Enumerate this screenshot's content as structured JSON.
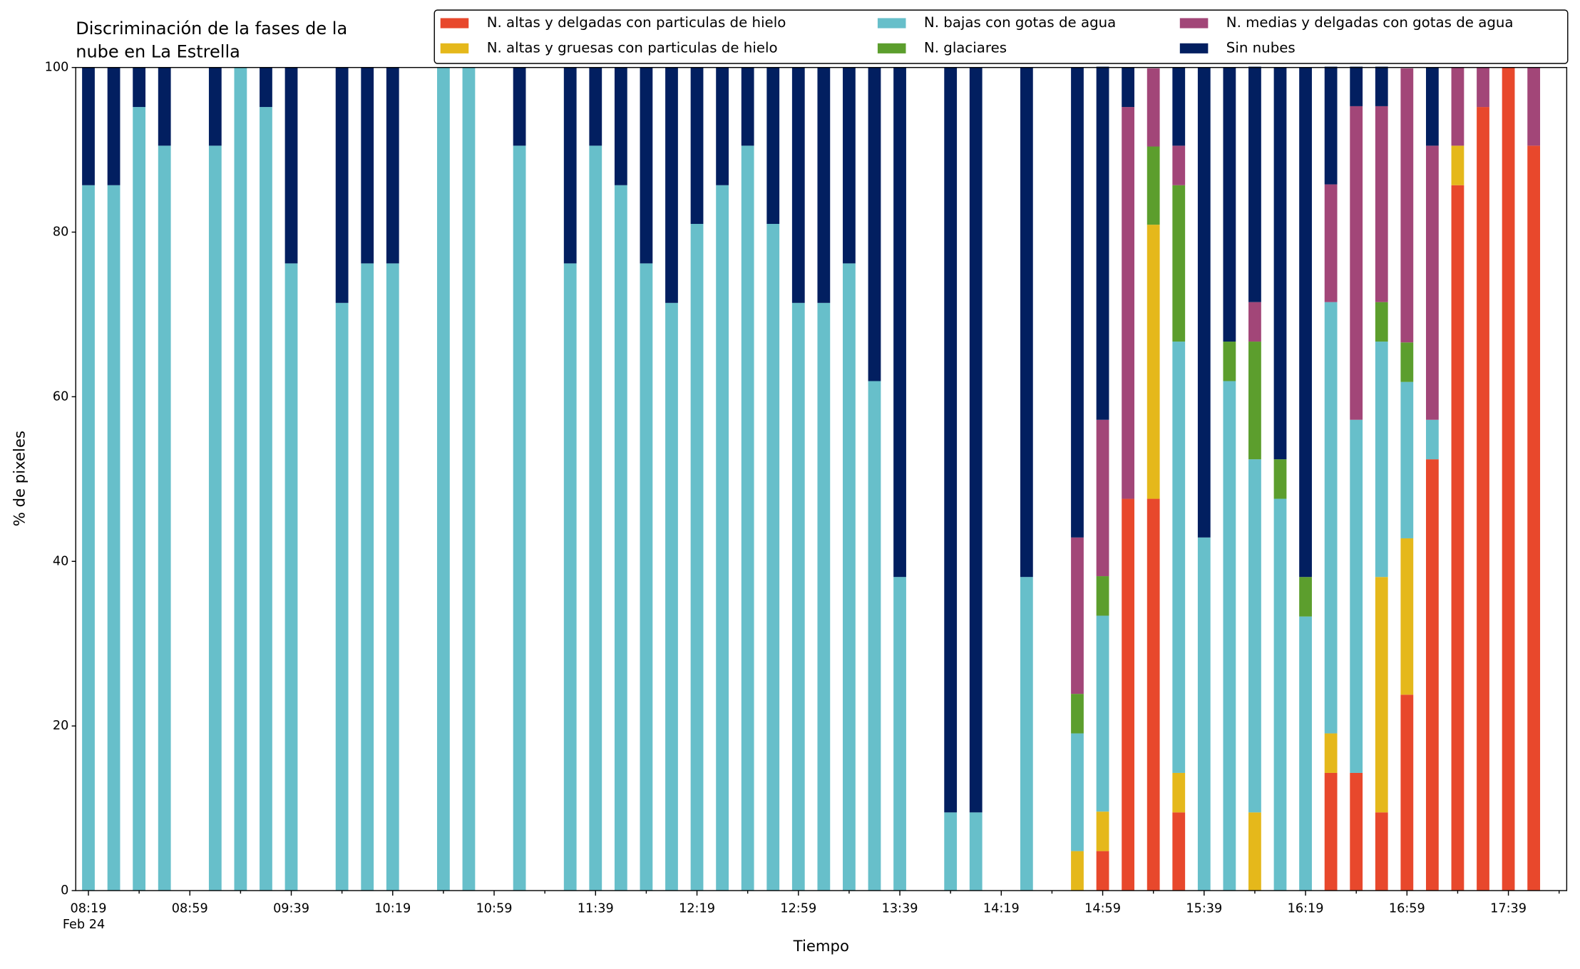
{
  "chart_data": {
    "type": "stacked_bar",
    "title_lines": [
      "Discriminación de la fases de la",
      "nube en La Estrella"
    ],
    "x_label": "Tiempo",
    "y_label": "% de pixeles",
    "x_date_label": "Feb 24",
    "x": [
      "08:19",
      "08:29",
      "08:39",
      "08:49",
      "09:09",
      "09:19",
      "09:29",
      "09:39",
      "09:59",
      "10:09",
      "10:19",
      "10:39",
      "10:49",
      "11:09",
      "11:29",
      "11:39",
      "11:49",
      "11:59",
      "12:09",
      "12:19",
      "12:29",
      "12:39",
      "12:49",
      "12:59",
      "13:09",
      "13:19",
      "13:29",
      "13:39",
      "13:59",
      "14:09",
      "14:29",
      "14:49",
      "14:59",
      "15:09",
      "15:19",
      "15:29",
      "15:39",
      "15:49",
      "15:59",
      "16:09",
      "16:19",
      "16:29",
      "16:39",
      "16:49",
      "16:59",
      "17:09",
      "17:19",
      "17:29",
      "17:39",
      "17:49"
    ],
    "series": [
      {
        "name": "N. altas y delgadas con particulas de hielo",
        "color": "#e8482c",
        "values": [
          0,
          0,
          0,
          0,
          0,
          0,
          0,
          0,
          0,
          0,
          0,
          0,
          0,
          0,
          0,
          0,
          0,
          0,
          0,
          0,
          0,
          0,
          0,
          0,
          0,
          0,
          0,
          0,
          0,
          0,
          0,
          0,
          4.8,
          47.6,
          47.6,
          9.5,
          0,
          0,
          0,
          0,
          0,
          14.3,
          14.3,
          9.5,
          23.8,
          52.4,
          85.7,
          95.2,
          100,
          90.5
        ]
      },
      {
        "name": "N. altas y gruesas con particulas de hielo",
        "color": "#e5b81b",
        "values": [
          0,
          0,
          0,
          0,
          0,
          0,
          0,
          0,
          0,
          0,
          0,
          0,
          0,
          0,
          0,
          0,
          0,
          0,
          0,
          0,
          0,
          0,
          0,
          0,
          0,
          0,
          0,
          0,
          0,
          0,
          0,
          4.8,
          4.8,
          0,
          33.3,
          4.8,
          0,
          0,
          9.5,
          0,
          0,
          4.8,
          0,
          28.6,
          19.0,
          0,
          4.8,
          0,
          0,
          0
        ]
      },
      {
        "name": "N. bajas con gotas de agua",
        "color": "#67bfca",
        "values": [
          85.7,
          85.7,
          95.2,
          90.5,
          90.5,
          100,
          95.2,
          76.2,
          71.4,
          76.2,
          76.2,
          100,
          100,
          90.5,
          76.2,
          90.5,
          85.7,
          76.2,
          71.4,
          81.0,
          85.7,
          90.5,
          81.0,
          71.4,
          71.4,
          76.2,
          61.9,
          38.1,
          9.5,
          9.5,
          38.1,
          14.3,
          23.8,
          0,
          0,
          52.4,
          42.9,
          61.9,
          42.9,
          47.6,
          33.3,
          52.4,
          42.9,
          28.6,
          19.0,
          4.8,
          0,
          0,
          0,
          0
        ]
      },
      {
        "name": "N. glaciares",
        "color": "#5c9e2d",
        "values": [
          0,
          0,
          0,
          0,
          0,
          0,
          0,
          0,
          0,
          0,
          0,
          0,
          0,
          0,
          0,
          0,
          0,
          0,
          0,
          0,
          0,
          0,
          0,
          0,
          0,
          0,
          0,
          0,
          0,
          0,
          0,
          4.8,
          4.8,
          0,
          9.5,
          19.0,
          0,
          4.8,
          14.3,
          4.8,
          4.8,
          0,
          0,
          4.8,
          4.8,
          0,
          0,
          0,
          0,
          0
        ]
      },
      {
        "name": "N. medias y delgadas con gotas de agua",
        "color": "#a24678",
        "values": [
          0,
          0,
          0,
          0,
          0,
          0,
          0,
          0,
          0,
          0,
          0,
          0,
          0,
          0,
          0,
          0,
          0,
          0,
          0,
          0,
          0,
          0,
          0,
          0,
          0,
          0,
          0,
          0,
          0,
          0,
          0,
          19.0,
          19.0,
          47.6,
          9.5,
          4.8,
          0,
          0,
          4.8,
          0,
          0,
          14.3,
          38.1,
          23.8,
          33.3,
          33.3,
          9.5,
          4.8,
          0,
          9.5
        ]
      },
      {
        "name": "Sin nubes",
        "color": "#021f60",
        "values": [
          14.3,
          14.3,
          4.8,
          9.5,
          9.5,
          0,
          4.8,
          23.8,
          28.6,
          23.8,
          23.8,
          0,
          0,
          9.5,
          23.8,
          9.5,
          14.3,
          23.8,
          28.6,
          19.0,
          14.3,
          9.5,
          19.0,
          28.6,
          28.6,
          23.8,
          38.1,
          61.9,
          90.5,
          90.5,
          61.9,
          57.1,
          42.9,
          4.8,
          0,
          9.5,
          57.1,
          33.3,
          28.6,
          47.6,
          61.9,
          14.3,
          4.8,
          4.8,
          0,
          9.5,
          0,
          0,
          0,
          0
        ]
      }
    ],
    "xlim": [
      "08:14",
      "18:02"
    ],
    "xticks": [
      "08:19",
      "08:59",
      "09:39",
      "10:19",
      "10:59",
      "11:39",
      "12:19",
      "12:59",
      "13:39",
      "14:19",
      "14:59",
      "15:39",
      "16:19",
      "16:59",
      "17:39"
    ],
    "xminorticks": [
      "08:39",
      "09:19",
      "09:59",
      "10:39",
      "11:19",
      "11:59",
      "12:39",
      "13:19",
      "13:59",
      "14:39",
      "15:19",
      "15:59",
      "16:39",
      "17:19",
      "17:59"
    ],
    "ylim": [
      0,
      100
    ],
    "yticks": [
      0,
      20,
      40,
      60,
      80,
      100
    ],
    "legend": "top-right",
    "legend_columns": 3
  }
}
